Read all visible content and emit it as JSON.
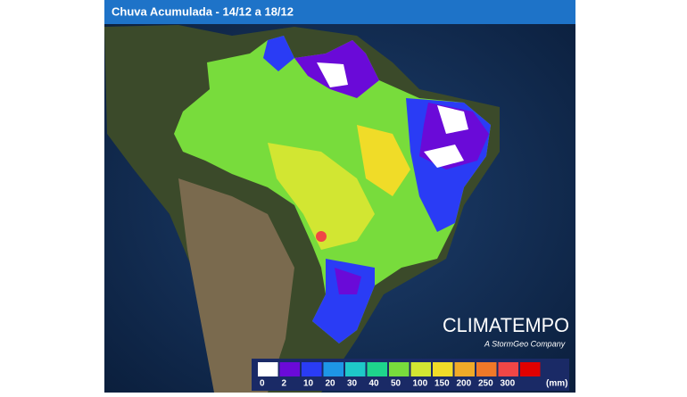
{
  "header": {
    "title": "Chuva Acumulada - 14/12 a 18/12"
  },
  "legend": {
    "colors": [
      "#ffffff",
      "#6a0ad8",
      "#2a3cf5",
      "#1e96e6",
      "#1ec8c8",
      "#1ed48c",
      "#78dc3c",
      "#d2e632",
      "#f0dc28",
      "#f0aa28",
      "#f07828",
      "#f04646",
      "#e00000"
    ],
    "labels": [
      "0",
      "2",
      "10",
      "20",
      "30",
      "40",
      "50",
      "100",
      "150",
      "200",
      "250",
      "300"
    ],
    "unit": "(mm)"
  },
  "brand": {
    "name": "CLIMATEMPO",
    "tagline": "A StormGeo Company"
  }
}
